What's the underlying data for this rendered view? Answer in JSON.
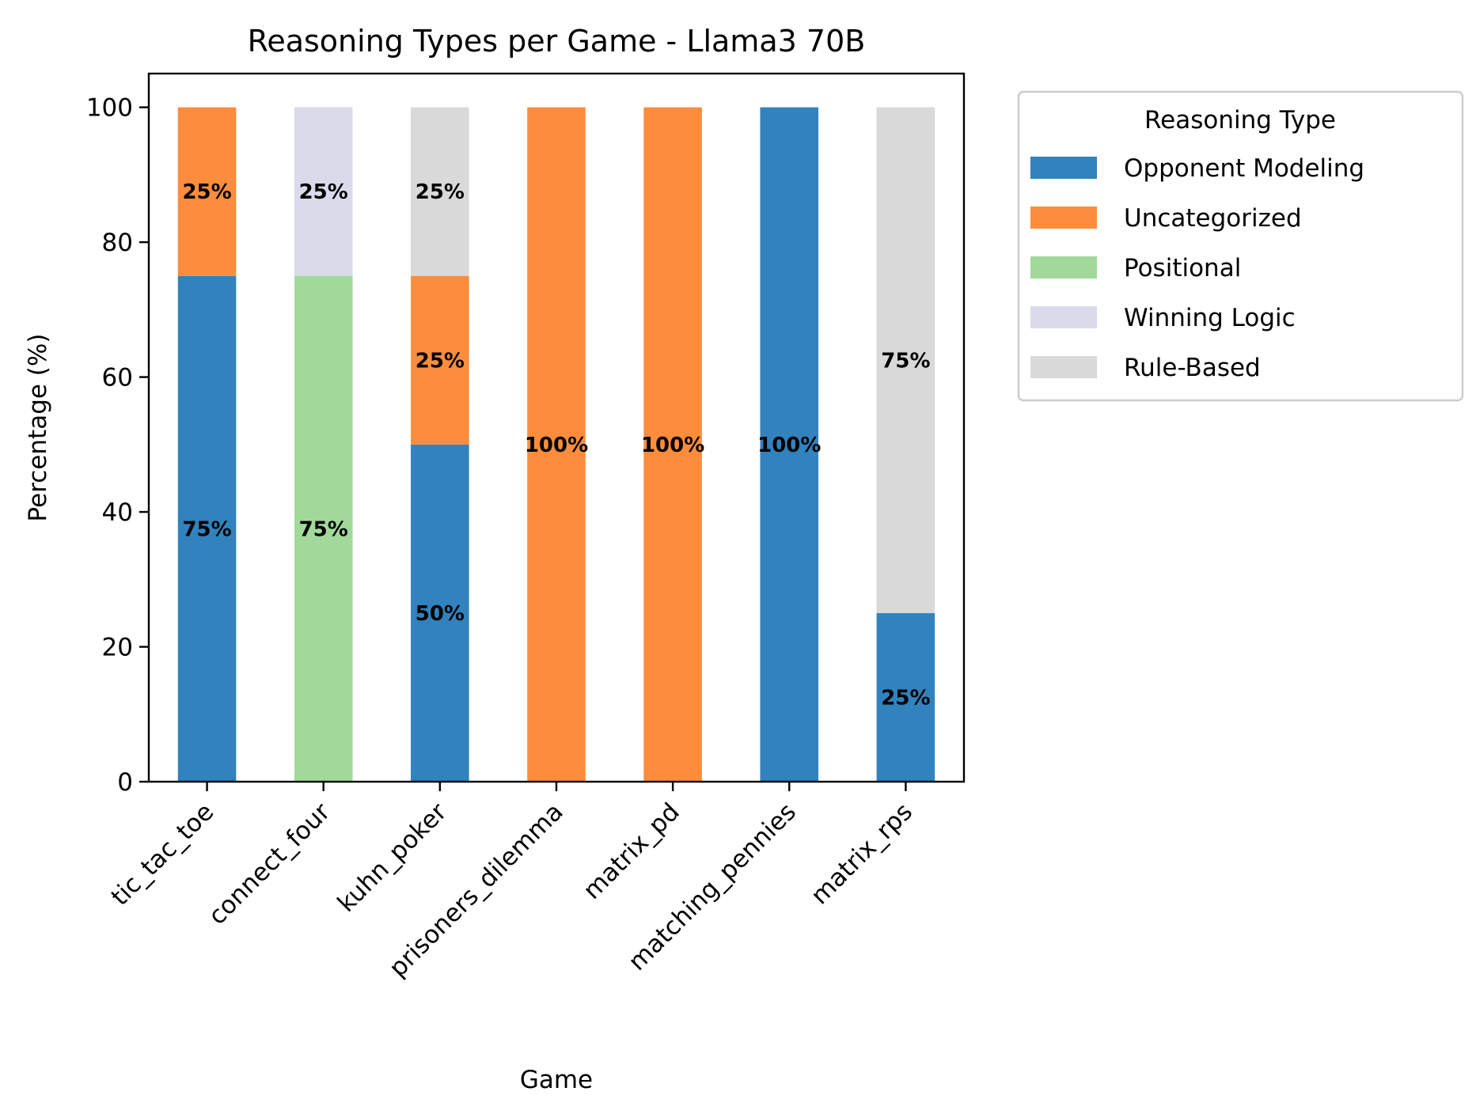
{
  "chart_data": {
    "type": "bar",
    "stacked": true,
    "title": "Reasoning Types per Game - Llama3 70B",
    "xlabel": "Game",
    "ylabel": "Percentage (%)",
    "ylim": [
      0,
      105
    ],
    "yticks": [
      0,
      20,
      40,
      60,
      80,
      100
    ],
    "grid": false,
    "legend": {
      "title": "Reasoning Type",
      "placement": "outside-upper-right"
    },
    "categories": [
      "tic_tac_toe",
      "connect_four",
      "kuhn_poker",
      "prisoners_dilemma",
      "matrix_pd",
      "matching_pennies",
      "matrix_rps"
    ],
    "series": [
      {
        "name": "Opponent Modeling",
        "color": "#3182bd",
        "values": [
          75,
          0,
          50,
          0,
          0,
          100,
          25
        ]
      },
      {
        "name": "Uncategorized",
        "color": "#fd8d3c",
        "values": [
          25,
          0,
          25,
          100,
          100,
          0,
          0
        ]
      },
      {
        "name": "Positional",
        "color": "#a1d99b",
        "values": [
          0,
          75,
          0,
          0,
          0,
          0,
          0
        ]
      },
      {
        "name": "Winning Logic",
        "color": "#dadaeb",
        "values": [
          0,
          25,
          0,
          0,
          0,
          0,
          0
        ]
      },
      {
        "name": "Rule-Based",
        "color": "#d9d9d9",
        "values": [
          0,
          0,
          25,
          0,
          0,
          0,
          75
        ]
      }
    ],
    "value_label_suffix": "%"
  }
}
